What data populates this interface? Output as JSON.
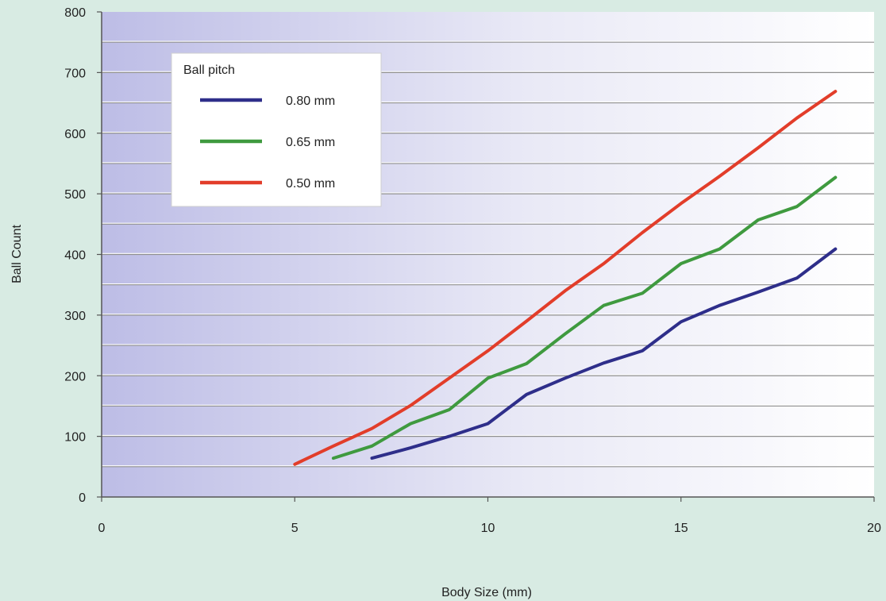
{
  "chart_data": {
    "type": "line",
    "title": "",
    "xlabel": "Body Size (mm)",
    "ylabel": "Ball Count",
    "xlim": [
      0,
      20
    ],
    "ylim": [
      0,
      800
    ],
    "x_ticks": [
      0,
      5,
      10,
      15,
      20
    ],
    "y_ticks": [
      0,
      100,
      200,
      300,
      400,
      500,
      600,
      700,
      800
    ],
    "grid": "horizontal",
    "legend": {
      "title": "Ball pitch",
      "placement": "top-left"
    },
    "series": [
      {
        "name": "0.80 mm",
        "color": "#2e2e8a",
        "points": [
          [
            7,
            64
          ],
          [
            8,
            81
          ],
          [
            9,
            100
          ],
          [
            10,
            121
          ],
          [
            11,
            169
          ],
          [
            12,
            196
          ],
          [
            13,
            221
          ],
          [
            14,
            241
          ],
          [
            15,
            289
          ],
          [
            16,
            316
          ],
          [
            17,
            338
          ],
          [
            18,
            361
          ],
          [
            19,
            409
          ]
        ]
      },
      {
        "name": "0.65 mm",
        "color": "#3f9a3f",
        "points": [
          [
            6,
            64
          ],
          [
            7,
            84
          ],
          [
            8,
            121
          ],
          [
            9,
            144
          ],
          [
            10,
            196
          ],
          [
            11,
            220
          ],
          [
            12,
            269
          ],
          [
            13,
            316
          ],
          [
            14,
            336
          ],
          [
            15,
            385
          ],
          [
            16,
            409
          ],
          [
            17,
            457
          ],
          [
            18,
            479
          ],
          [
            19,
            527
          ]
        ]
      },
      {
        "name": "0.50 mm",
        "color": "#e23d2a",
        "points": [
          [
            5,
            54
          ],
          [
            6,
            84
          ],
          [
            7,
            113
          ],
          [
            8,
            151
          ],
          [
            9,
            196
          ],
          [
            10,
            241
          ],
          [
            11,
            290
          ],
          [
            12,
            340
          ],
          [
            13,
            385
          ],
          [
            14,
            436
          ],
          [
            15,
            484
          ],
          [
            16,
            529
          ],
          [
            17,
            576
          ],
          [
            18,
            625
          ],
          [
            19,
            669
          ]
        ]
      }
    ]
  }
}
